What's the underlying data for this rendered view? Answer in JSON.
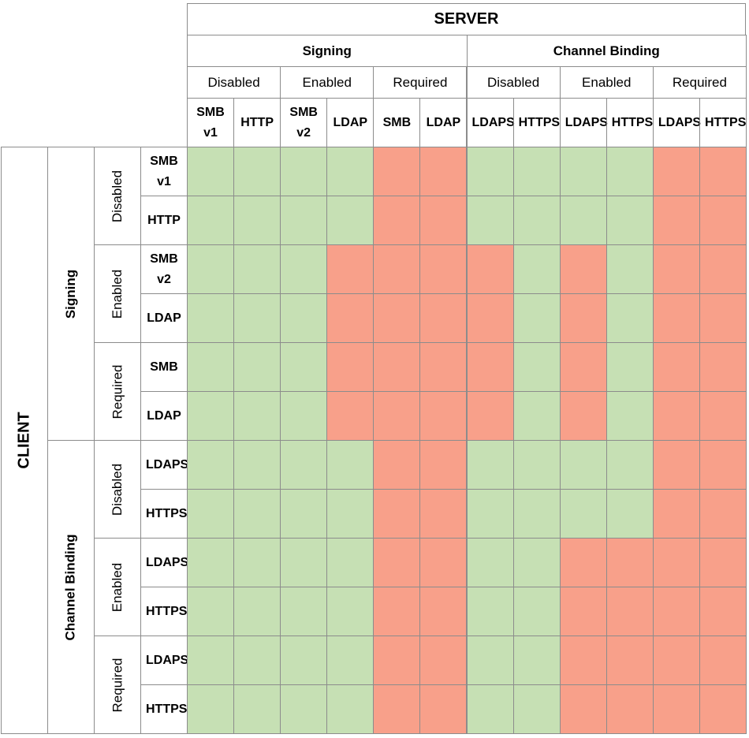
{
  "server": {
    "title": "SERVER",
    "groups": [
      {
        "label": "Signing",
        "subgroups": [
          {
            "label": "Disabled",
            "protocols": [
              "SMB v1",
              "HTTP"
            ]
          },
          {
            "label": "Enabled",
            "protocols": [
              "SMB v2",
              "LDAP"
            ]
          },
          {
            "label": "Required",
            "protocols": [
              "SMB",
              "LDAP"
            ]
          }
        ]
      },
      {
        "label": "Channel Binding",
        "subgroups": [
          {
            "label": "Disabled",
            "protocols": [
              "LDAPS",
              "HTTPS"
            ]
          },
          {
            "label": "Enabled",
            "protocols": [
              "LDAPS",
              "HTTPS"
            ]
          },
          {
            "label": "Required",
            "protocols": [
              "LDAPS",
              "HTTPS"
            ]
          }
        ]
      }
    ]
  },
  "client": {
    "title": "CLIENT",
    "groups": [
      {
        "label": "Signing",
        "subgroups": [
          {
            "label": "Disabled",
            "protocols": [
              "SMB v1",
              "HTTP"
            ]
          },
          {
            "label": "Enabled",
            "protocols": [
              "SMB v2",
              "LDAP"
            ]
          },
          {
            "label": "Required",
            "protocols": [
              "SMB",
              "LDAP"
            ]
          }
        ]
      },
      {
        "label": "Channel Binding",
        "subgroups": [
          {
            "label": "Disabled",
            "protocols": [
              "LDAPS",
              "HTTPS"
            ]
          },
          {
            "label": "Enabled",
            "protocols": [
              "LDAPS",
              "HTTPS"
            ]
          },
          {
            "label": "Required",
            "protocols": [
              "LDAPS",
              "HTTPS"
            ]
          }
        ]
      }
    ]
  },
  "grid": [
    [
      "#c6e0b4",
      "#c6e0b4",
      "#c6e0b4",
      "#c6e0b4",
      "#f8a08a",
      "#f8a08a",
      "#c6e0b4",
      "#c6e0b4",
      "#c6e0b4",
      "#c6e0b4",
      "#f8a08a",
      "#f8a08a"
    ],
    [
      "#c6e0b4",
      "#c6e0b4",
      "#c6e0b4",
      "#c6e0b4",
      "#f8a08a",
      "#f8a08a",
      "#c6e0b4",
      "#c6e0b4",
      "#c6e0b4",
      "#c6e0b4",
      "#f8a08a",
      "#f8a08a"
    ],
    [
      "#c6e0b4",
      "#c6e0b4",
      "#c6e0b4",
      "#f8a08a",
      "#f8a08a",
      "#f8a08a",
      "#f8a08a",
      "#c6e0b4",
      "#f8a08a",
      "#c6e0b4",
      "#f8a08a",
      "#f8a08a"
    ],
    [
      "#c6e0b4",
      "#c6e0b4",
      "#c6e0b4",
      "#f8a08a",
      "#f8a08a",
      "#f8a08a",
      "#f8a08a",
      "#c6e0b4",
      "#f8a08a",
      "#c6e0b4",
      "#f8a08a",
      "#f8a08a"
    ],
    [
      "#c6e0b4",
      "#c6e0b4",
      "#c6e0b4",
      "#f8a08a",
      "#f8a08a",
      "#f8a08a",
      "#f8a08a",
      "#c6e0b4",
      "#f8a08a",
      "#c6e0b4",
      "#f8a08a",
      "#f8a08a"
    ],
    [
      "#c6e0b4",
      "#c6e0b4",
      "#c6e0b4",
      "#f8a08a",
      "#f8a08a",
      "#f8a08a",
      "#f8a08a",
      "#c6e0b4",
      "#f8a08a",
      "#c6e0b4",
      "#f8a08a",
      "#f8a08a"
    ],
    [
      "#c6e0b4",
      "#c6e0b4",
      "#c6e0b4",
      "#c6e0b4",
      "#f8a08a",
      "#f8a08a",
      "#c6e0b4",
      "#c6e0b4",
      "#c6e0b4",
      "#c6e0b4",
      "#f8a08a",
      "#f8a08a"
    ],
    [
      "#c6e0b4",
      "#c6e0b4",
      "#c6e0b4",
      "#c6e0b4",
      "#f8a08a",
      "#f8a08a",
      "#c6e0b4",
      "#c6e0b4",
      "#c6e0b4",
      "#c6e0b4",
      "#f8a08a",
      "#f8a08a"
    ],
    [
      "#c6e0b4",
      "#c6e0b4",
      "#c6e0b4",
      "#c6e0b4",
      "#f8a08a",
      "#f8a08a",
      "#c6e0b4",
      "#c6e0b4",
      "#f8a08a",
      "#f8a08a",
      "#f8a08a",
      "#f8a08a"
    ],
    [
      "#c6e0b4",
      "#c6e0b4",
      "#c6e0b4",
      "#c6e0b4",
      "#f8a08a",
      "#f8a08a",
      "#c6e0b4",
      "#c6e0b4",
      "#f8a08a",
      "#f8a08a",
      "#f8a08a",
      "#f8a08a"
    ],
    [
      "#c6e0b4",
      "#c6e0b4",
      "#c6e0b4",
      "#c6e0b4",
      "#f8a08a",
      "#f8a08a",
      "#c6e0b4",
      "#c6e0b4",
      "#f8a08a",
      "#f8a08a",
      "#f8a08a",
      "#f8a08a"
    ],
    [
      "#c6e0b4",
      "#c6e0b4",
      "#c6e0b4",
      "#c6e0b4",
      "#f8a08a",
      "#f8a08a",
      "#c6e0b4",
      "#c6e0b4",
      "#f8a08a",
      "#f8a08a",
      "#f8a08a",
      "#f8a08a"
    ]
  ]
}
